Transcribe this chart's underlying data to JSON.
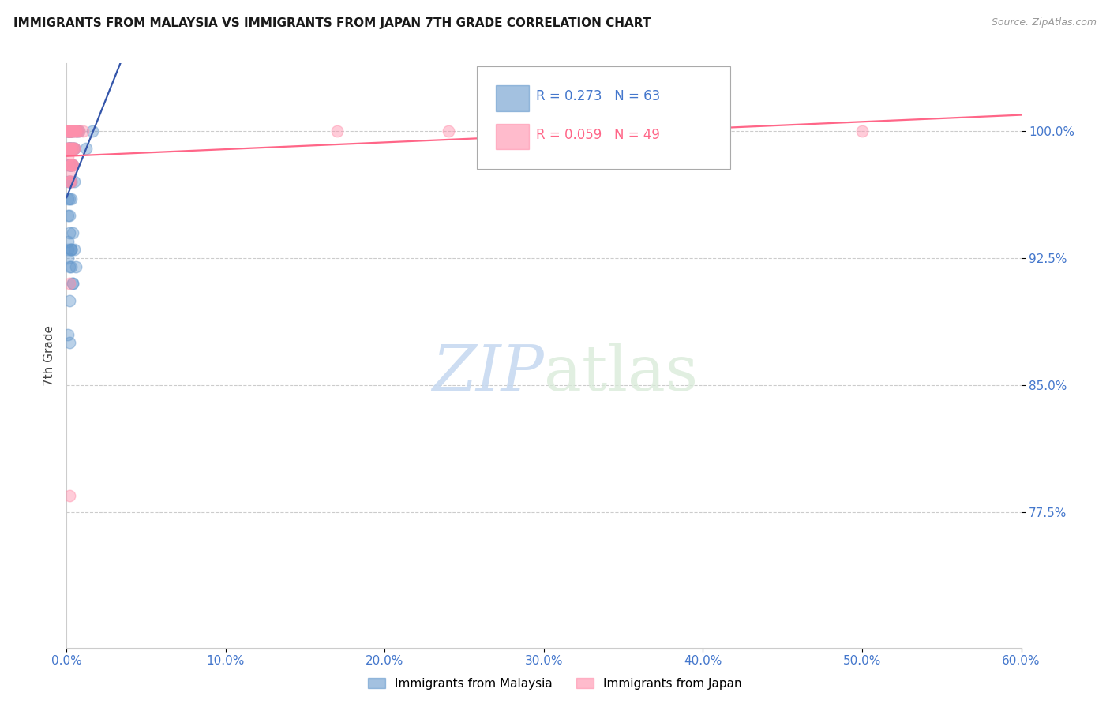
{
  "title": "IMMIGRANTS FROM MALAYSIA VS IMMIGRANTS FROM JAPAN 7TH GRADE CORRELATION CHART",
  "source": "Source: ZipAtlas.com",
  "ylabel": "7th Grade",
  "ytick_labels": [
    "100.0%",
    "92.5%",
    "85.0%",
    "77.5%"
  ],
  "ytick_values": [
    1.0,
    0.925,
    0.85,
    0.775
  ],
  "xmin": 0.0,
  "xmax": 0.6,
  "ymin": 0.695,
  "ymax": 1.04,
  "legend_r_malaysia": "R = 0.273",
  "legend_n_malaysia": "N = 63",
  "legend_r_japan": "R = 0.059",
  "legend_n_japan": "N = 49",
  "color_malaysia": "#6699CC",
  "color_japan": "#FF8FAB",
  "trendline_color_malaysia": "#3355AA",
  "trendline_color_japan": "#FF6688",
  "background_color": "#FFFFFF",
  "malaysia_x": [
    0.001,
    0.002,
    0.003,
    0.001,
    0.002,
    0.004,
    0.002,
    0.003,
    0.001,
    0.005,
    0.002,
    0.003,
    0.004,
    0.001,
    0.003,
    0.002,
    0.006,
    0.001,
    0.004,
    0.002,
    0.003,
    0.001,
    0.002,
    0.004,
    0.003,
    0.002,
    0.001,
    0.005,
    0.003,
    0.002,
    0.001,
    0.006,
    0.002,
    0.003,
    0.004,
    0.001,
    0.003,
    0.002,
    0.004,
    0.001,
    0.005,
    0.002,
    0.003,
    0.001,
    0.002,
    0.004,
    0.003,
    0.001,
    0.007,
    0.002,
    0.016,
    0.003,
    0.001,
    0.002,
    0.004,
    0.003,
    0.008,
    0.002,
    0.001,
    0.005,
    0.003,
    0.012,
    0.002
  ],
  "malaysia_y": [
    1.0,
    1.0,
    1.0,
    0.99,
    1.0,
    1.0,
    0.99,
    0.98,
    1.0,
    0.99,
    0.98,
    0.99,
    1.0,
    1.0,
    0.97,
    0.99,
    1.0,
    0.98,
    0.99,
    1.0,
    0.96,
    0.99,
    1.0,
    0.98,
    0.99,
    0.98,
    1.0,
    0.99,
    1.0,
    0.95,
    0.93,
    0.92,
    0.94,
    0.93,
    0.91,
    0.925,
    0.93,
    0.92,
    0.94,
    0.935,
    0.93,
    0.9,
    0.92,
    0.88,
    0.875,
    0.91,
    0.93,
    0.95,
    1.0,
    0.99,
    1.0,
    0.98,
    0.97,
    0.96,
    0.99,
    0.98,
    1.0,
    0.99,
    0.96,
    0.97,
    0.98,
    0.99,
    0.97
  ],
  "japan_x": [
    0.001,
    0.002,
    0.004,
    0.002,
    0.003,
    0.005,
    0.001,
    0.003,
    0.002,
    0.004,
    0.001,
    0.006,
    0.003,
    0.002,
    0.001,
    0.004,
    0.003,
    0.002,
    0.005,
    0.001,
    0.003,
    0.002,
    0.004,
    0.001,
    0.006,
    0.003,
    0.002,
    0.007,
    0.001,
    0.003,
    0.004,
    0.002,
    0.001,
    0.005,
    0.003,
    0.002,
    0.004,
    0.001,
    0.003,
    0.008,
    0.002,
    0.01,
    0.003,
    0.001,
    0.002,
    0.24,
    0.38,
    0.5,
    0.17
  ],
  "japan_y": [
    1.0,
    1.0,
    1.0,
    0.99,
    1.0,
    1.0,
    1.0,
    0.99,
    1.0,
    0.98,
    0.99,
    1.0,
    1.0,
    1.0,
    0.99,
    0.98,
    1.0,
    0.97,
    0.99,
    1.0,
    0.98,
    0.97,
    1.0,
    0.99,
    1.0,
    0.98,
    0.99,
    1.0,
    0.98,
    0.97,
    0.99,
    0.91,
    1.0,
    0.99,
    1.0,
    1.0,
    0.99,
    0.985,
    0.98,
    1.0,
    0.975,
    1.0,
    0.99,
    1.0,
    0.785,
    1.0,
    1.0,
    1.0,
    1.0
  ],
  "xtick_vals": [
    0.0,
    0.1,
    0.2,
    0.3,
    0.4,
    0.5,
    0.6
  ],
  "xtick_labels": [
    "0.0%",
    "10.0%",
    "20.0%",
    "30.0%",
    "40.0%",
    "50.0%",
    "60.0%"
  ]
}
